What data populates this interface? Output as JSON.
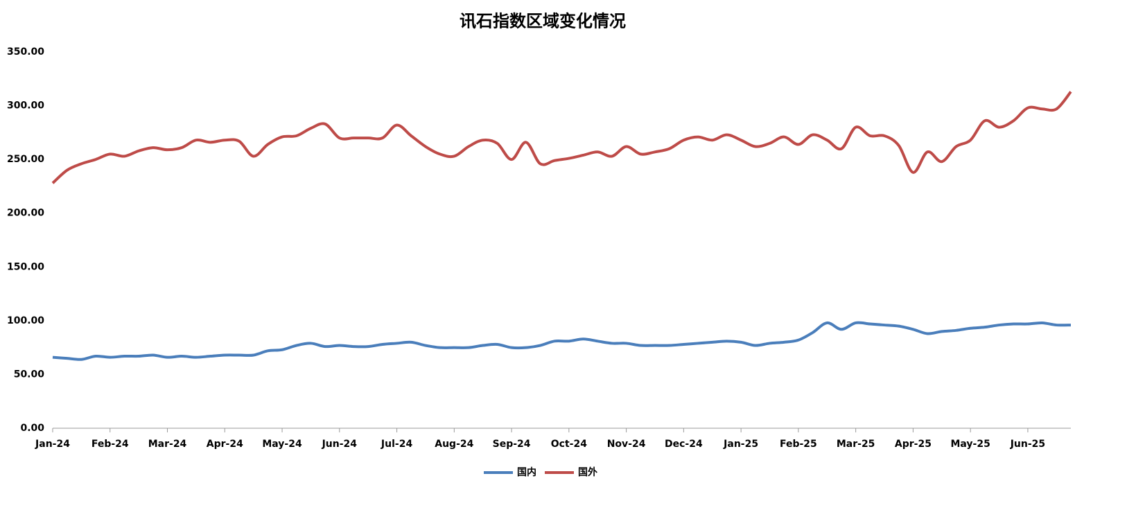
{
  "chart_data": {
    "type": "line",
    "title": "讯石指数区域变化情况",
    "categories": [
      "Jan-24",
      null,
      null,
      null,
      "Feb-24",
      null,
      null,
      null,
      "Mar-24",
      null,
      null,
      null,
      "Apr-24",
      null,
      null,
      null,
      "May-24",
      null,
      null,
      null,
      "Jun-24",
      null,
      null,
      null,
      "Jul-24",
      null,
      null,
      null,
      "Aug-24",
      null,
      null,
      null,
      "Sep-24",
      null,
      null,
      null,
      "Oct-24",
      null,
      null,
      null,
      "Nov-24",
      null,
      null,
      null,
      "Dec-24",
      null,
      null,
      null,
      "Jan-25",
      null,
      null,
      null,
      "Feb-25",
      null,
      null,
      null,
      "Mar-25",
      null,
      null,
      null,
      "Apr-25",
      null,
      null,
      null,
      "May-25",
      null,
      null,
      null,
      "Jun-25",
      null,
      null,
      null
    ],
    "series": [
      {
        "name": "国内",
        "color": "#4a7ebb",
        "values": [
          66,
          65,
          64,
          67,
          66,
          67,
          67,
          68,
          66,
          67,
          66,
          67,
          68,
          68,
          68,
          72,
          73,
          77,
          79,
          76,
          77,
          76,
          76,
          78,
          79,
          80,
          77,
          75,
          75,
          75,
          77,
          78,
          75,
          75,
          77,
          81,
          81,
          83,
          81,
          79,
          79,
          77,
          77,
          77,
          78,
          79,
          80,
          81,
          80,
          77,
          79,
          80,
          82,
          89,
          98,
          92,
          98,
          97,
          96,
          95,
          92,
          88,
          90,
          91,
          93,
          94,
          96,
          97,
          97,
          98,
          96,
          96
        ]
      },
      {
        "name": "国外",
        "color": "#be4b48",
        "values": [
          228,
          240,
          246,
          250,
          255,
          253,
          258,
          261,
          259,
          261,
          268,
          266,
          268,
          267,
          253,
          264,
          271,
          272,
          279,
          283,
          270,
          270,
          270,
          270,
          282,
          272,
          262,
          255,
          253,
          262,
          268,
          265,
          250,
          266,
          246,
          249,
          251,
          254,
          257,
          253,
          262,
          255,
          257,
          260,
          268,
          271,
          268,
          273,
          268,
          262,
          265,
          271,
          264,
          273,
          268,
          260,
          280,
          272,
          272,
          263,
          238,
          257,
          248,
          262,
          268,
          286,
          280,
          286,
          298,
          297,
          297,
          313
        ]
      }
    ],
    "ylim": [
      0,
      350
    ],
    "yticks": [
      {
        "value": 0,
        "label": "0.00"
      },
      {
        "value": 50,
        "label": "50.00"
      },
      {
        "value": 100,
        "label": "100.00"
      },
      {
        "value": 150,
        "label": "150.00"
      },
      {
        "value": 200,
        "label": "200.00"
      },
      {
        "value": 250,
        "label": "250.00"
      },
      {
        "value": 300,
        "label": "300.00"
      },
      {
        "value": 350,
        "label": "350.00"
      }
    ],
    "legend": "bottom"
  }
}
